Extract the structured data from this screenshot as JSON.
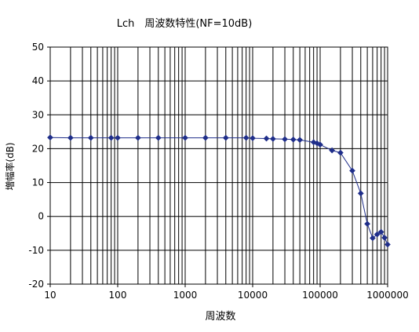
{
  "chart_data": {
    "type": "line",
    "title": "Lch　周波数特性(NF=10dB)",
    "xlabel": "周波数",
    "ylabel": "増幅率(dB)",
    "x_scale": "log",
    "xlim": [
      10,
      1000000
    ],
    "ylim": [
      -20,
      50
    ],
    "x_ticks": [
      10,
      100,
      1000,
      10000,
      100000,
      1000000
    ],
    "x_tick_labels": [
      "10",
      "100",
      "1000",
      "10000",
      "100000",
      "1000000"
    ],
    "y_ticks": [
      -20,
      -10,
      0,
      10,
      20,
      30,
      40,
      50
    ],
    "y_tick_labels": [
      "-20",
      "-10",
      "0",
      "10",
      "20",
      "30",
      "40",
      "50"
    ],
    "grid": true,
    "legend": "none",
    "series_color": "#1f2e8a",
    "series": [
      {
        "x": [
          10,
          20,
          40,
          80,
          100,
          200,
          400,
          1000,
          2000,
          4000,
          8000,
          10000,
          16000,
          20000,
          30000,
          40000,
          50000,
          80000,
          90000,
          100000,
          150000,
          200000,
          300000,
          400000,
          500000,
          600000,
          700000,
          800000,
          900000,
          1000000
        ],
        "y": [
          23.3,
          23.2,
          23.2,
          23.2,
          23.2,
          23.2,
          23.2,
          23.2,
          23.2,
          23.2,
          23.2,
          23.1,
          23.0,
          22.9,
          22.8,
          22.7,
          22.6,
          21.9,
          21.6,
          21.2,
          19.5,
          18.8,
          13.5,
          6.8,
          -2.2,
          -6.4,
          -5.3,
          -4.6,
          -6.3,
          -8.3
        ]
      }
    ]
  }
}
